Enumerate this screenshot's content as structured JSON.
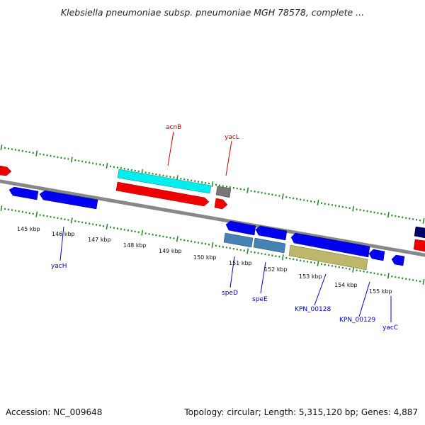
{
  "title": "Klebsiella pneumoniae subsp. pneumoniae MGH 78578, complete ...",
  "footer": {
    "accession": "Accession: NC_009648",
    "topology": "Topology: circular; Length: 5,315,120 bp; Genes: 4,887"
  },
  "colors": {
    "backbone": "#888888",
    "tick": "#2a8a2a",
    "forward_label": "#cc0000",
    "reverse_label": "#0000cc"
  },
  "kbp_labels": [
    "145 kbp",
    "146 kbp",
    "147 kbp",
    "148 kbp",
    "149 kbp",
    "150 kbp",
    "151 kbp",
    "152 kbp",
    "153 kbp",
    "154 kbp",
    "155 kbp"
  ],
  "features": [
    {
      "name": "acnB",
      "strand": "forward",
      "label": "acnB"
    },
    {
      "name": "yacL",
      "strand": "forward",
      "label": "yacL"
    },
    {
      "name": "yacH",
      "strand": "reverse",
      "label": "yacH"
    },
    {
      "name": "speD",
      "strand": "reverse",
      "label": "speD"
    },
    {
      "name": "speE",
      "strand": "reverse",
      "label": "speE"
    },
    {
      "name": "KPN_00128",
      "strand": "reverse",
      "label": "KPN_00128"
    },
    {
      "name": "KPN_00129",
      "strand": "reverse",
      "label": "KPN_00129"
    },
    {
      "name": "yacC",
      "strand": "reverse",
      "label": "yacC"
    }
  ]
}
